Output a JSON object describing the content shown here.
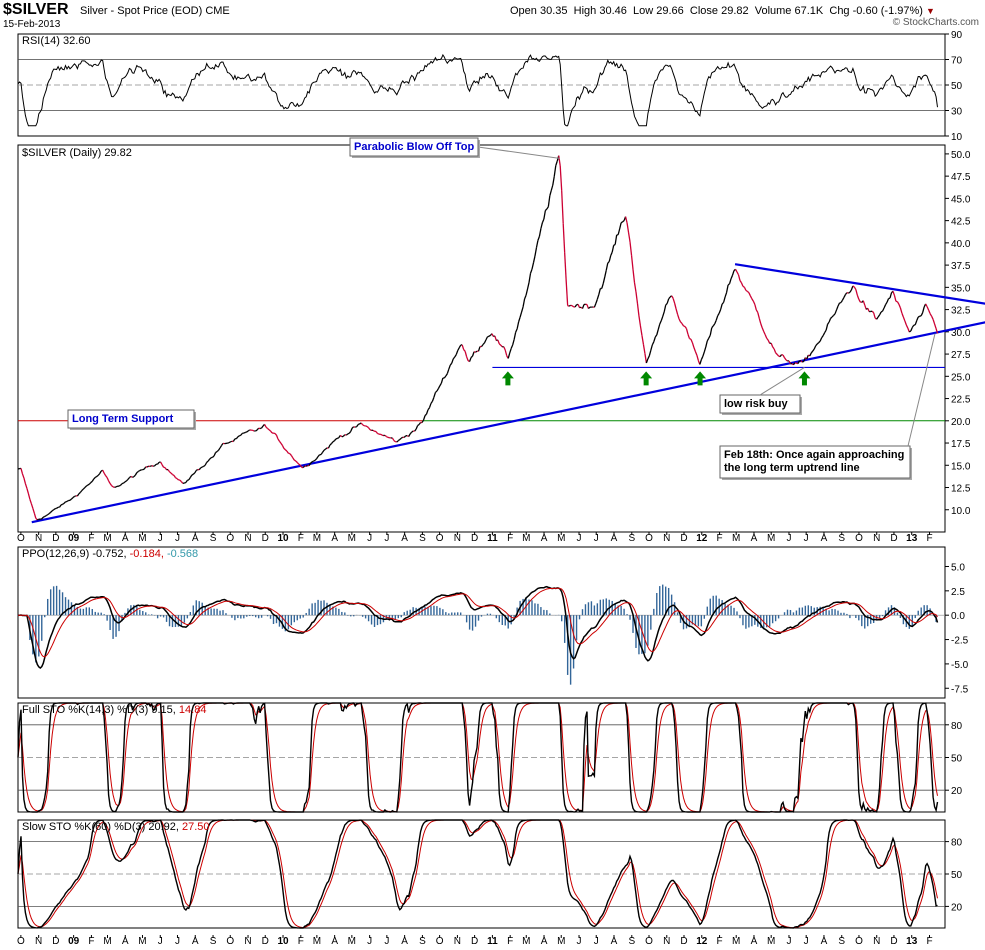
{
  "header": {
    "symbol": "$SILVER",
    "description": "Silver - Spot Price (EOD)",
    "exchange": "CME",
    "date": "15-Feb-2013",
    "open_label": "Open",
    "open": "30.35",
    "high_label": "High",
    "high": "30.46",
    "low_label": "Low",
    "low": "29.66",
    "close_label": "Close",
    "close": "29.82",
    "volume_label": "Volume",
    "volume": "67.1K",
    "chg_label": "Chg",
    "chg": "-0.60 (-1.97%)",
    "watermark": "© StockCharts.com"
  },
  "colors": {
    "price": "#000000",
    "down": "#cc0033",
    "trendline": "#0000dd",
    "support_red": "#cc0000",
    "support_green": "#008800",
    "hist": "#336699",
    "rsi_fill": "#5a8a4a",
    "signal": "#cc0000",
    "arrow": "#008800"
  },
  "chart_data": [
    {
      "type": "line",
      "title": "RSI(14) 32.60",
      "label": "RSI(14)",
      "value": "32.60",
      "ylim": [
        10,
        90
      ],
      "yticks": [
        "90",
        "70",
        "50",
        "30",
        "10"
      ],
      "levels": [
        70,
        50,
        30
      ]
    },
    {
      "type": "line",
      "title": "$SILVER (Daily) 29.82",
      "label": "$SILVER (Daily)",
      "value": "29.82",
      "ylim": [
        7.5,
        51
      ],
      "yticks": [
        "50.0",
        "47.5",
        "45.0",
        "42.5",
        "40.0",
        "37.5",
        "35.0",
        "32.5",
        "30.0",
        "27.5",
        "25.0",
        "22.5",
        "20.0",
        "17.5",
        "15.0",
        "12.5",
        "10.0"
      ],
      "x_labels": [
        "O",
        "N",
        "D",
        "09",
        "F",
        "M",
        "A",
        "M",
        "J",
        "J",
        "A",
        "S",
        "O",
        "N",
        "D",
        "10",
        "F",
        "M",
        "A",
        "M",
        "J",
        "J",
        "A",
        "S",
        "O",
        "N",
        "D",
        "11",
        "F",
        "M",
        "A",
        "M",
        "J",
        "J",
        "A",
        "S",
        "O",
        "N",
        "D",
        "12",
        "F",
        "M",
        "A",
        "M",
        "J",
        "J",
        "A",
        "S",
        "O",
        "N",
        "D",
        "13",
        "F"
      ],
      "keypoints": [
        {
          "date": "2008-10-01",
          "y": 14.5
        },
        {
          "date": "2008-10-28",
          "y": 8.8
        },
        {
          "date": "2008-11-20",
          "y": 9.6
        },
        {
          "date": "2008-12-31",
          "y": 11.3
        },
        {
          "date": "2009-02-20",
          "y": 14.3
        },
        {
          "date": "2009-03-10",
          "y": 12.3
        },
        {
          "date": "2009-06-01",
          "y": 15.6
        },
        {
          "date": "2009-07-10",
          "y": 12.8
        },
        {
          "date": "2009-09-20",
          "y": 17.3
        },
        {
          "date": "2009-12-02",
          "y": 19.3
        },
        {
          "date": "2010-02-05",
          "y": 14.8
        },
        {
          "date": "2010-04-15",
          "y": 18.5
        },
        {
          "date": "2010-05-15",
          "y": 19.5
        },
        {
          "date": "2010-07-20",
          "y": 17.6
        },
        {
          "date": "2010-09-01",
          "y": 19.8
        },
        {
          "date": "2010-11-08",
          "y": 29.0
        },
        {
          "date": "2010-11-20",
          "y": 26.5
        },
        {
          "date": "2010-12-31",
          "y": 30.5
        },
        {
          "date": "2011-01-28",
          "y": 26.8
        },
        {
          "date": "2011-03-08",
          "y": 36.0
        },
        {
          "date": "2011-04-28",
          "y": 49.5
        },
        {
          "date": "2011-05-12",
          "y": 33.0
        },
        {
          "date": "2011-06-28",
          "y": 33.2
        },
        {
          "date": "2011-08-22",
          "y": 43.3
        },
        {
          "date": "2011-09-26",
          "y": 26.2
        },
        {
          "date": "2011-11-08",
          "y": 34.5
        },
        {
          "date": "2011-12-29",
          "y": 26.2
        },
        {
          "date": "2012-02-28",
          "y": 37.3
        },
        {
          "date": "2012-05-15",
          "y": 27.0
        },
        {
          "date": "2012-06-28",
          "y": 26.3
        },
        {
          "date": "2012-09-20",
          "y": 35.2
        },
        {
          "date": "2012-11-01",
          "y": 31.0
        },
        {
          "date": "2012-11-28",
          "y": 34.4
        },
        {
          "date": "2012-12-28",
          "y": 29.8
        },
        {
          "date": "2013-01-25",
          "y": 32.3
        },
        {
          "date": "2013-02-15",
          "y": 29.82
        }
      ],
      "annotations": [
        {
          "id": "parabolic",
          "text": "Parabolic Blow Off Top"
        },
        {
          "id": "lts",
          "text": "Long Term Support"
        },
        {
          "id": "lowrisk",
          "text": "low risk buy"
        },
        {
          "id": "feb18",
          "text": "Feb 18th: Once again approaching the long term uptrend line"
        }
      ],
      "support_levels": [
        {
          "name": "red support",
          "y": 20.0,
          "until": "2010-09-01"
        },
        {
          "name": "green support",
          "y": 20.0,
          "from": "2010-09-01"
        },
        {
          "name": "blue support",
          "y": 26.0,
          "from": "2011-01-01"
        }
      ],
      "trendlines": [
        {
          "name": "long term uptrend",
          "from": {
            "date": "2008-10-20",
            "y": 8.6
          },
          "to": {
            "date": "2013-03-10",
            "y": 30.3
          }
        },
        {
          "name": "upper downtrend",
          "from": {
            "date": "2012-02-28",
            "y": 37.6
          },
          "to": {
            "date": "2013-03-10",
            "y": 33.4
          }
        }
      ],
      "arrows": [
        "2011-01-28",
        "2011-09-26",
        "2011-12-29",
        "2012-06-28"
      ]
    },
    {
      "type": "line",
      "title": "PPO(12,26,9) -0.752, -0.184, -0.568",
      "label": "PPO(12,26,9)",
      "v1": "-0.752",
      "v2": "-0.184",
      "v3": "-0.568",
      "ylim": [
        -8.5,
        7
      ],
      "yticks": [
        "5.0",
        "2.5",
        "0.0",
        "-2.5",
        "-5.0",
        "-7.5"
      ]
    },
    {
      "type": "line",
      "title": "Full STO %K(14,3) %D(3) 9.15, 14.84",
      "label": "Full STO %K(14,3) %D(3)",
      "v1": "9.15",
      "v2": "14.84",
      "ylim": [
        0,
        100
      ],
      "yticks": [
        "80",
        "50",
        "20"
      ]
    },
    {
      "type": "line",
      "title": "Slow STO %K(60) %D(3) 20.92, 27.50",
      "label": "Slow STO %K(60) %D(3)",
      "v1": "20.92",
      "v2": "27.50",
      "ylim": [
        0,
        100
      ],
      "yticks": [
        "80",
        "50",
        "20"
      ]
    }
  ]
}
